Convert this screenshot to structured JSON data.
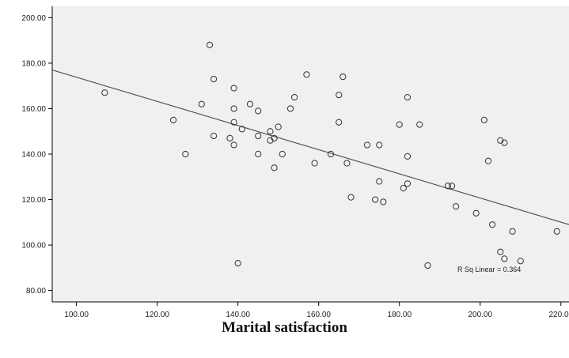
{
  "chart_data": {
    "type": "scatter",
    "xlabel": "Marital satisfaction",
    "ylabel": "",
    "xlim": [
      94,
      222
    ],
    "ylim": [
      75,
      205
    ],
    "x_ticks": [
      "100.00",
      "120.00",
      "140.00",
      "160.00",
      "180.00",
      "200.00",
      "220.00"
    ],
    "x_tick_values": [
      100,
      120,
      140,
      160,
      180,
      200,
      220
    ],
    "y_ticks": [
      "80.00",
      "100.00",
      "120.00",
      "140.00",
      "160.00",
      "180.00",
      "200.00"
    ],
    "y_tick_values": [
      80,
      100,
      120,
      140,
      160,
      180,
      200
    ],
    "grid": false,
    "plot_background": "#f0f0f0",
    "marker_color": "#333333",
    "series": [
      {
        "points": [
          [
            107,
            167
          ],
          [
            124,
            155
          ],
          [
            127,
            140
          ],
          [
            131,
            162
          ],
          [
            133,
            188
          ],
          [
            134,
            173
          ],
          [
            134,
            148
          ],
          [
            138,
            147
          ],
          [
            139,
            169
          ],
          [
            139,
            160
          ],
          [
            139,
            154
          ],
          [
            139,
            144
          ],
          [
            140,
            92
          ],
          [
            141,
            151
          ],
          [
            143,
            162
          ],
          [
            145,
            159
          ],
          [
            145,
            148
          ],
          [
            145,
            140
          ],
          [
            148,
            150
          ],
          [
            148,
            146
          ],
          [
            149,
            147
          ],
          [
            149,
            134
          ],
          [
            150,
            152
          ],
          [
            151,
            140
          ],
          [
            153,
            160
          ],
          [
            154,
            165
          ],
          [
            157,
            175
          ],
          [
            159,
            136
          ],
          [
            163,
            140
          ],
          [
            165,
            166
          ],
          [
            165,
            154
          ],
          [
            166,
            174
          ],
          [
            167,
            136
          ],
          [
            168,
            121
          ],
          [
            172,
            144
          ],
          [
            174,
            120
          ],
          [
            175,
            144
          ],
          [
            175,
            128
          ],
          [
            176,
            119
          ],
          [
            180,
            153
          ],
          [
            181,
            125
          ],
          [
            182,
            127
          ],
          [
            182,
            139
          ],
          [
            182,
            165
          ],
          [
            185,
            153
          ],
          [
            187,
            91
          ],
          [
            192,
            126
          ],
          [
            193,
            126
          ],
          [
            194,
            117
          ],
          [
            199,
            114
          ],
          [
            201,
            155
          ],
          [
            202,
            137
          ],
          [
            203,
            109
          ],
          [
            205,
            146
          ],
          [
            205,
            97
          ],
          [
            206,
            145
          ],
          [
            206,
            94
          ],
          [
            208,
            106
          ],
          [
            210,
            93
          ],
          [
            219,
            106
          ]
        ]
      }
    ],
    "fit_line": {
      "x": [
        94,
        222
      ],
      "y": [
        177,
        109
      ]
    },
    "annotation": "R Sq Linear = 0.364"
  }
}
